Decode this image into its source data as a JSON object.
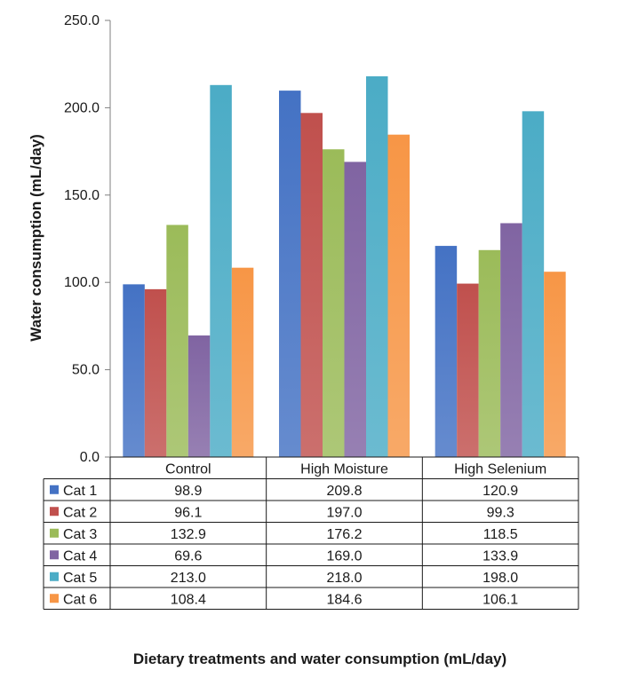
{
  "chart_data": {
    "type": "bar",
    "title": "",
    "xlabel": "Dietary treatments and water consumption (mL/day)",
    "ylabel": "Water consumption (mL/day)",
    "ylim": [
      0,
      250
    ],
    "yticks": [
      "0.0",
      "50.0",
      "100.0",
      "150.0",
      "200.0",
      "250.0"
    ],
    "categories": [
      "Control",
      "High Moisture",
      "High Selenium"
    ],
    "series": [
      {
        "name": "Cat 1",
        "color": "#4472C4",
        "values": [
          98.9,
          209.8,
          120.9
        ],
        "labels": [
          "98.9",
          "209.8",
          "120.9"
        ]
      },
      {
        "name": "Cat 2",
        "color": "#C0504D",
        "values": [
          96.1,
          197.0,
          99.3
        ],
        "labels": [
          "96.1",
          "197.0",
          "99.3"
        ]
      },
      {
        "name": "Cat 3",
        "color": "#9BBB59",
        "values": [
          132.9,
          176.2,
          118.5
        ],
        "labels": [
          "132.9",
          "176.2",
          "118.5"
        ]
      },
      {
        "name": "Cat 4",
        "color": "#8064A2",
        "values": [
          69.6,
          169.0,
          133.9
        ],
        "labels": [
          "69.6",
          "169.0",
          "133.9"
        ]
      },
      {
        "name": "Cat 5",
        "color": "#4BACC6",
        "values": [
          213.0,
          218.0,
          198.0
        ],
        "labels": [
          "213.0",
          "218.0",
          "198.0"
        ]
      },
      {
        "name": "Cat 6",
        "color": "#F79646",
        "values": [
          108.4,
          184.6,
          106.1
        ],
        "labels": [
          "108.4",
          "184.6",
          "106.1"
        ]
      }
    ],
    "grid": false,
    "legend": "data-table"
  }
}
